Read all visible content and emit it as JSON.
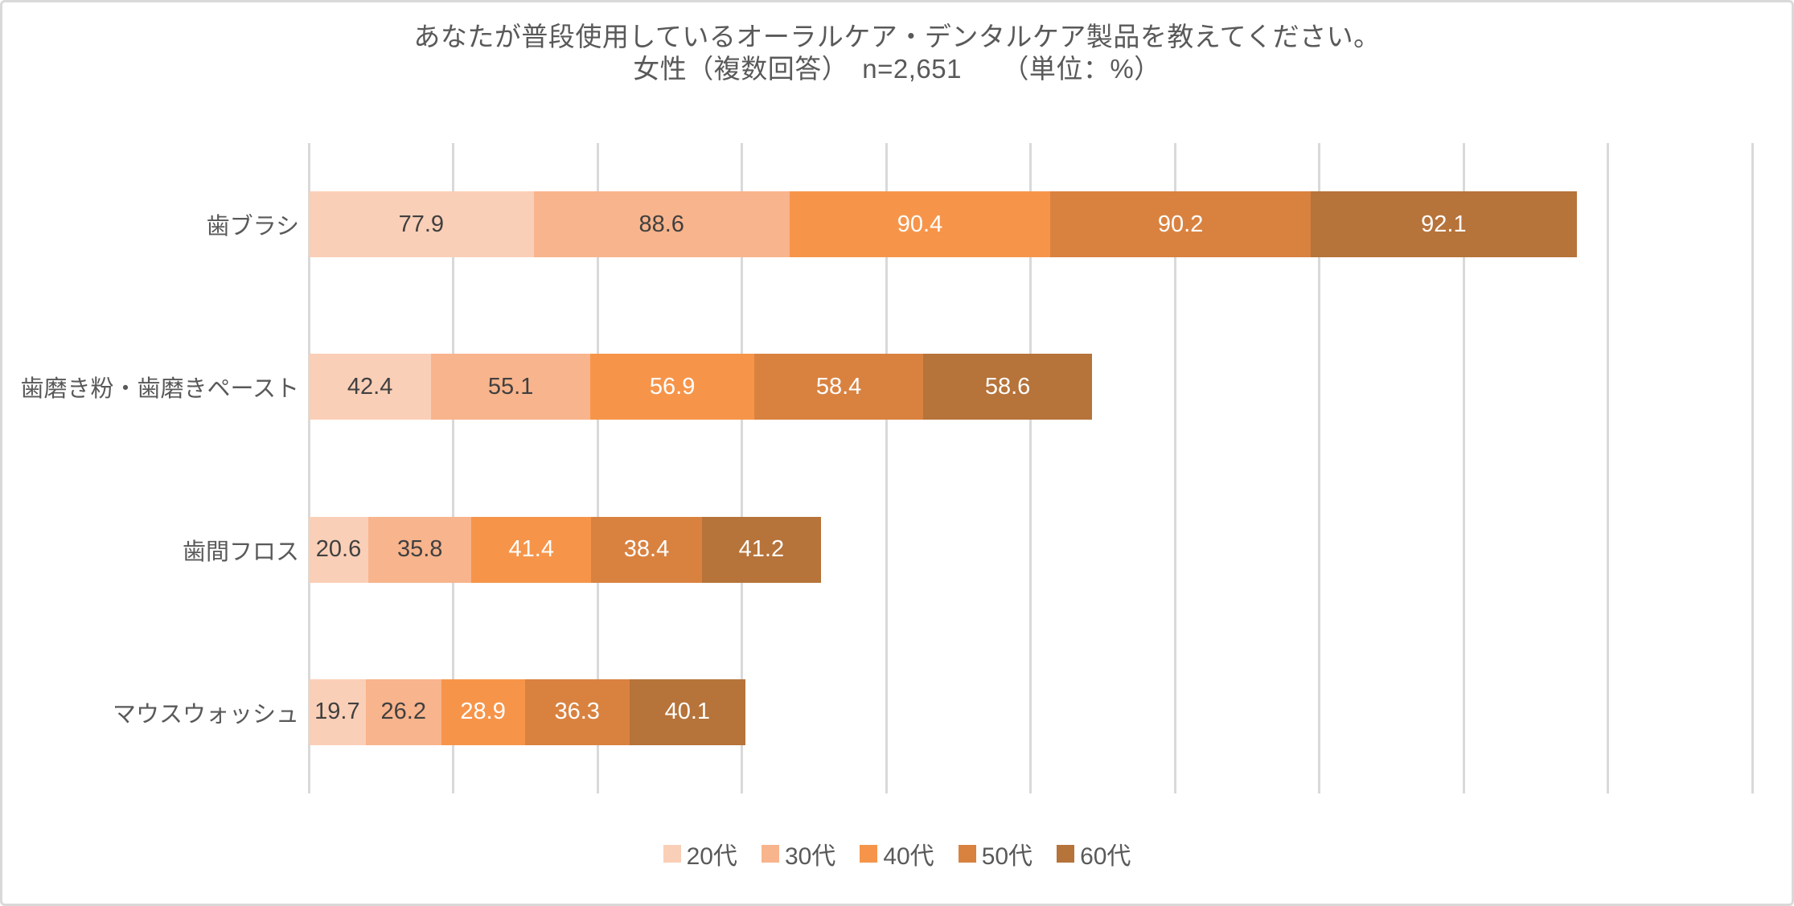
{
  "title": {
    "line1": "あなたが普段使用しているオーラルケア・デンタルケア製品を教えてください。",
    "line2": "女性（複数回答）　n=2,651　　（単位：%）"
  },
  "colors": {
    "frame_border": "#d9d9d9",
    "gridline": "#d9d9d9",
    "title_text": "#595959",
    "axis_label_text": "#595959",
    "dark_value_label": "#404040",
    "white_value_label": "#ffffff",
    "background": "#ffffff"
  },
  "chart_data": {
    "type": "bar",
    "orientation": "horizontal",
    "stacked": true,
    "title": "あなたが普段使用しているオーラルケア・デンタルケア製品を教えてください。",
    "subtitle": "女性（複数回答）　n=2,651　　（単位：%）",
    "unit": "%",
    "n": "2,651",
    "categories": [
      "歯ブラシ",
      "歯磨き粉・歯磨きペースト",
      "歯間フロス",
      "マウスウォッシュ"
    ],
    "series": [
      {
        "name": "20代",
        "color": "#FACFB7",
        "label_color": "#404040",
        "values": [
          77.9,
          42.4,
          20.6,
          19.7
        ]
      },
      {
        "name": "30代",
        "color": "#F8B48C",
        "label_color": "#404040",
        "values": [
          88.6,
          55.1,
          35.8,
          26.2
        ]
      },
      {
        "name": "40代",
        "color": "#F6954A",
        "label_color": "#ffffff",
        "values": [
          90.4,
          56.9,
          41.4,
          28.9
        ]
      },
      {
        "name": "50代",
        "color": "#D98240",
        "label_color": "#ffffff",
        "values": [
          90.2,
          58.4,
          38.4,
          36.3
        ]
      },
      {
        "name": "60代",
        "color": "#B6733A",
        "label_color": "#ffffff",
        "values": [
          92.1,
          58.6,
          41.2,
          40.1
        ]
      }
    ],
    "x_axis": {
      "min": 0,
      "max": 500,
      "gridline_interval": 50,
      "tick_labels_visible": false
    },
    "grid": true,
    "legend": {
      "position": "bottom",
      "entries": [
        "20代",
        "30代",
        "40代",
        "50代",
        "60代"
      ]
    }
  }
}
